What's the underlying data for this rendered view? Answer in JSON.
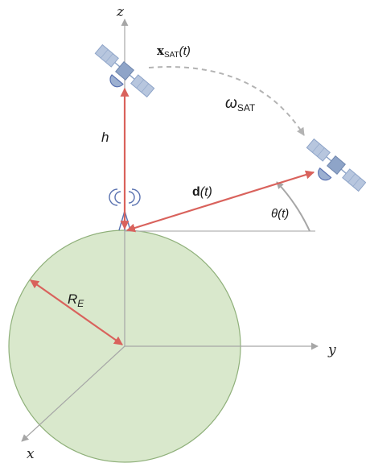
{
  "axes": {
    "x": "x",
    "y": "y",
    "z": "z"
  },
  "labels": {
    "height": "h",
    "earth_radius_main": "R",
    "earth_radius_sub": "E",
    "distance_bold": "d",
    "distance_arg": "(t)",
    "elevation": "θ(t)",
    "sat_position_bold": "x",
    "sat_position_sub": "SAT",
    "sat_position_arg": "(t)",
    "angular_velocity": "ω",
    "angular_velocity_sub": "SAT"
  },
  "colors": {
    "earth_fill": "#d9e8cc",
    "earth_stroke": "#8fb07a",
    "vector": "#d9625c",
    "axis": "#a6a6a6",
    "satellite_body": "#8ea4c8",
    "satellite_panel": "#b7c6de",
    "antenna": "#5a72b0"
  }
}
